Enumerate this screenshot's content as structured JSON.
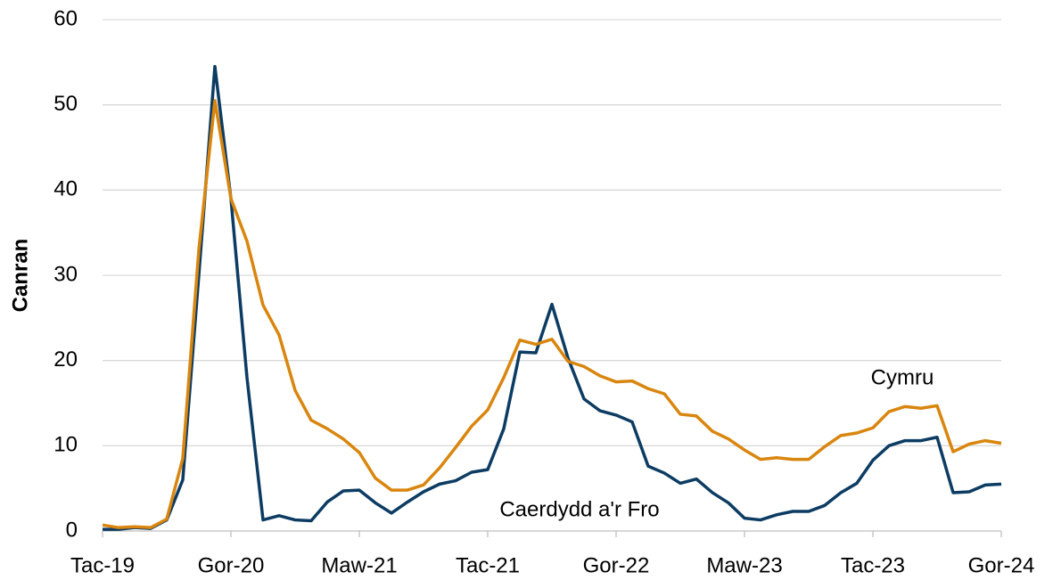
{
  "chart_data": {
    "type": "line",
    "y_label": "Canran",
    "categories": [
      "Tac-19",
      null,
      null,
      null,
      null,
      null,
      null,
      null,
      "Gor-20",
      null,
      null,
      null,
      null,
      null,
      null,
      null,
      "Maw-21",
      null,
      null,
      null,
      null,
      null,
      null,
      null,
      "Tac-21",
      null,
      null,
      null,
      null,
      null,
      null,
      null,
      "Gor-22",
      null,
      null,
      null,
      null,
      null,
      null,
      null,
      "Maw-23",
      null,
      null,
      null,
      null,
      null,
      null,
      null,
      "Tac-23",
      null,
      null,
      null,
      null,
      null,
      null,
      null,
      "Gor-24"
    ],
    "series": [
      {
        "name": "Cymru",
        "color": "#d9860f",
        "values": [
          0.7,
          0.4,
          0.5,
          0.4,
          1.4,
          8.5,
          33,
          50.5,
          39,
          34,
          26.5,
          23,
          16.5,
          13,
          12,
          10.8,
          9.2,
          6.2,
          4.8,
          4.8,
          5.4,
          7.4,
          9.8,
          12.3,
          14.2,
          18,
          22.4,
          21.9,
          22.5,
          19.9,
          19.3,
          18.2,
          17.5,
          17.6,
          16.7,
          16.1,
          13.7,
          13.5,
          11.7,
          10.8,
          9.5,
          8.4,
          8.6,
          8.4,
          8.4,
          9.9,
          11.2,
          11.5,
          12.1,
          14,
          14.6,
          14.4,
          14.7,
          9.3,
          10.2,
          10.6,
          10.3
        ]
      },
      {
        "name": "Caerdydd a'r Fro",
        "color": "#0d3c63",
        "values": [
          0.2,
          0.2,
          0.4,
          0.3,
          1.3,
          6,
          30,
          54.5,
          39,
          18,
          1.3,
          1.8,
          1.3,
          1.2,
          3.4,
          4.7,
          4.8,
          3.3,
          2.1,
          3.4,
          4.6,
          5.5,
          5.9,
          6.9,
          7.2,
          12,
          21,
          20.9,
          26.6,
          20.3,
          15.5,
          14.1,
          13.6,
          12.8,
          7.6,
          6.8,
          5.6,
          6.1,
          4.5,
          3.3,
          1.5,
          1.3,
          1.9,
          2.3,
          2.3,
          3,
          4.5,
          5.6,
          8.3,
          10,
          10.6,
          10.6,
          11,
          4.5,
          4.6,
          5.4,
          5.5
        ]
      }
    ],
    "ylim": [
      0,
      60
    ],
    "yticks": [
      0,
      10,
      20,
      30,
      40,
      50,
      60
    ],
    "grid": true
  }
}
